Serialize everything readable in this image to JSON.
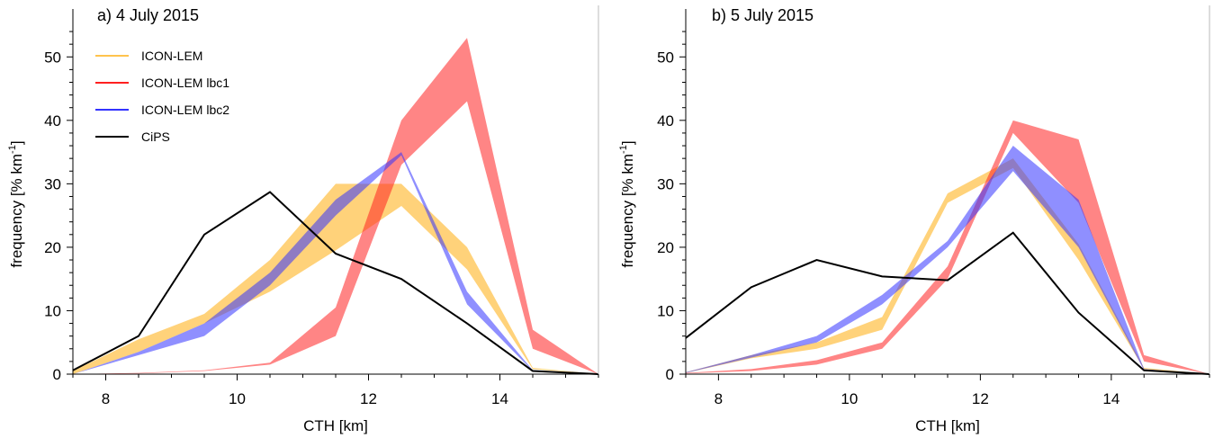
{
  "legend": [
    {
      "label": "ICON-LEM",
      "color": "#ffc34d"
    },
    {
      "label": "ICON-LEM lbc1",
      "color": "#ff2020"
    },
    {
      "label": "ICON-LEM lbc2",
      "color": "#3333ff"
    },
    {
      "label": "CiPS",
      "color": "#000000"
    }
  ],
  "chart_data": [
    {
      "type": "area",
      "title": "a) 4 July 2015",
      "xlabel": "CTH [km]",
      "ylabel_main": "frequency [% km",
      "ylabel_sup": "-1",
      "ylabel_tail": "]",
      "xlim": [
        7.5,
        15.5
      ],
      "ylim": [
        0,
        55
      ],
      "xticks": [
        8,
        10,
        12,
        14
      ],
      "yticks": [
        0,
        10,
        20,
        30,
        40,
        50
      ],
      "legend_position": "top-left",
      "x": [
        7.5,
        8.5,
        9.5,
        10.5,
        11.5,
        12.5,
        13.5,
        14.5,
        15.5
      ],
      "bands": [
        {
          "name": "ICON-LEM",
          "color": "#ffc34d",
          "opacity": 0.75,
          "lower": [
            0,
            3.5,
            8,
            13,
            19.5,
            26.5,
            16.5,
            0.8,
            0
          ],
          "upper": [
            0.5,
            5.5,
            9.5,
            18,
            30,
            30,
            20,
            1,
            0
          ]
        },
        {
          "name": "ICON-LEM lbc1",
          "color": "#ff2020",
          "opacity": 0.55,
          "lower": [
            0,
            0.1,
            0.5,
            1.5,
            6,
            33,
            43,
            4,
            0
          ],
          "upper": [
            0,
            0.2,
            0.6,
            1.8,
            10.5,
            40,
            53,
            7,
            0
          ]
        },
        {
          "name": "ICON-LEM lbc2",
          "color": "#3333ff",
          "opacity": 0.55,
          "lower": [
            0,
            3,
            6,
            14,
            25,
            34.5,
            11,
            0.5,
            0
          ],
          "upper": [
            0,
            3.5,
            8,
            16,
            27.5,
            35,
            13,
            0.6,
            0
          ]
        }
      ],
      "lines": [
        {
          "name": "CiPS",
          "color": "#000000",
          "values": [
            0.6,
            6,
            22,
            28.7,
            19,
            15,
            8,
            0.5,
            0
          ]
        }
      ]
    },
    {
      "type": "area",
      "title": "b) 5 July 2015",
      "xlabel": "CTH [km]",
      "ylabel_main": "frequency [% km",
      "ylabel_sup": "-1",
      "ylabel_tail": "]",
      "xlim": [
        7.5,
        15.5
      ],
      "ylim": [
        0,
        55
      ],
      "xticks": [
        8,
        10,
        12,
        14
      ],
      "yticks": [
        0,
        10,
        20,
        30,
        40,
        50
      ],
      "x": [
        7.5,
        8.5,
        9.5,
        10.5,
        11.5,
        12.5,
        13.5,
        14.5,
        15.5
      ],
      "bands": [
        {
          "name": "ICON-LEM",
          "color": "#ffc34d",
          "opacity": 0.75,
          "lower": [
            0.2,
            2.5,
            4,
            7,
            27,
            32.5,
            18,
            0.8,
            0
          ],
          "upper": [
            0.3,
            3,
            5,
            9,
            28.5,
            34,
            20.5,
            1,
            0
          ]
        },
        {
          "name": "ICON-LEM lbc1",
          "color": "#ff2020",
          "opacity": 0.55,
          "lower": [
            0.1,
            0.5,
            1.5,
            4,
            15,
            38,
            27,
            2,
            0
          ],
          "upper": [
            0.2,
            0.8,
            2.2,
            5,
            17,
            40,
            37,
            3,
            0
          ]
        },
        {
          "name": "ICON-LEM lbc2",
          "color": "#3333ff",
          "opacity": 0.55,
          "lower": [
            0.2,
            2.6,
            5,
            11,
            20,
            32,
            20,
            0.6,
            0
          ],
          "upper": [
            0.3,
            3,
            6,
            12.5,
            21,
            36,
            27.5,
            0.8,
            0
          ]
        }
      ],
      "lines": [
        {
          "name": "CiPS",
          "color": "#000000",
          "values": [
            5.7,
            13.7,
            18,
            15.4,
            14.8,
            22.3,
            9.7,
            0.6,
            0
          ]
        }
      ]
    }
  ]
}
